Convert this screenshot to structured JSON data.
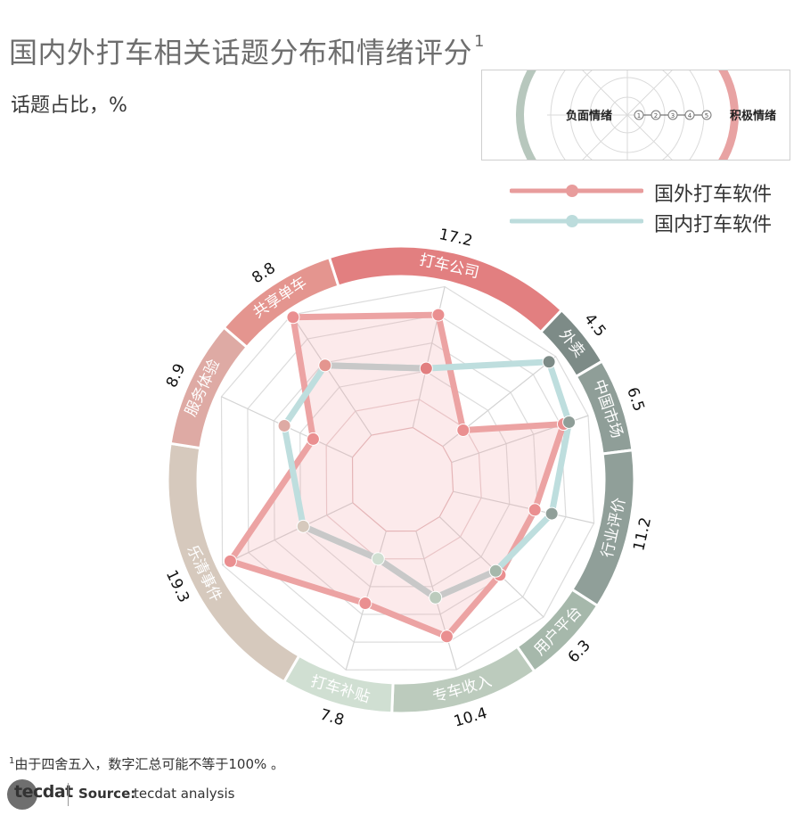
{
  "title": "国内外打车相关话题分布和情绪评分",
  "title_sup": "1",
  "subtitle": "话题占比，%",
  "sentiment_key": {
    "negative_label": "负面情绪",
    "positive_label": "积极情绪",
    "scale": [
      "1",
      "2",
      "3",
      "4",
      "5"
    ]
  },
  "legend": [
    {
      "name": "国外打车软件",
      "color": "#e89c9c"
    },
    {
      "name": "国内打车软件",
      "color": "#bcdcdc"
    }
  ],
  "chart_data": {
    "type": "radar",
    "title": "国内外打车相关话题分布和情绪评分",
    "categories": [
      "打车公司",
      "外卖",
      "中国市场",
      "行业评价",
      "用户平台",
      "专车收入",
      "打车补贴",
      "乐清事件",
      "服务体验",
      "共享单车"
    ],
    "topic_share": [
      17.2,
      4.5,
      6.5,
      11.2,
      6.3,
      10.4,
      7.8,
      19.3,
      8.9,
      8.8
    ],
    "topic_share_labels": [
      "17.2",
      "4.5",
      "6.5",
      "11.2",
      "6.3",
      "10.4",
      "7.8",
      "19.3",
      "8.9",
      "8.8"
    ],
    "segment_colors": [
      "#e27f80",
      "#7d8b87",
      "#8f9e98",
      "#909f99",
      "#a6b8ab",
      "#bccbbd",
      "#d0dfd2",
      "#d6c9bd",
      "#deaaa4",
      "#e4958f"
    ],
    "rlim": [
      0,
      5
    ],
    "series": [
      {
        "name": "国外打车软件",
        "values": [
          4.0,
          0.9,
          4.1,
          2.9,
          2.9,
          3.8,
          2.6,
          4.7,
          1.5,
          4.9
        ]
      },
      {
        "name": "国内打车软件",
        "values": [
          2.1,
          4.7,
          4.3,
          3.5,
          2.7,
          2.4,
          1.0,
          1.9,
          2.6,
          2.9
        ]
      }
    ],
    "grid": true
  },
  "footnote_sup": "1",
  "footnote": "由于四舍五入，数字汇总可能不等于100% 。",
  "logo_text": "tecdat",
  "source_label": "Source:",
  "source_text": "tecdat analysis"
}
